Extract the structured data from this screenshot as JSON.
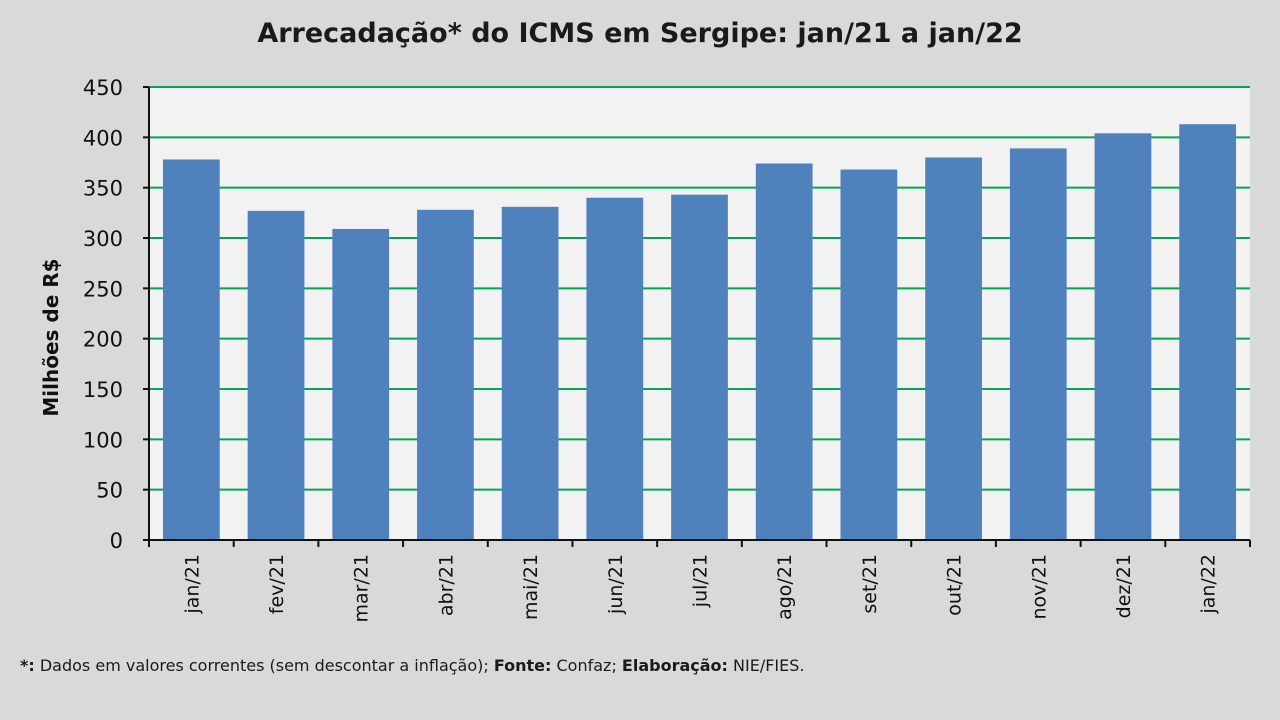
{
  "chart_data": {
    "type": "bar",
    "title": "Arrecadação* do ICMS em Sergipe: jan/21 a jan/22",
    "xlabel": "",
    "ylabel": "Milhões de R$",
    "ylim": [
      0,
      450
    ],
    "yticks": [
      0,
      50,
      100,
      150,
      200,
      250,
      300,
      350,
      400,
      450
    ],
    "grid": true,
    "categories": [
      "jan/21",
      "fev/21",
      "mar/21",
      "abr/21",
      "mai/21",
      "jun/21",
      "jul/21",
      "ago/21",
      "set/21",
      "out/21",
      "nov/21",
      "dez/21",
      "jan/22"
    ],
    "values": [
      378,
      327,
      309,
      328,
      331,
      340,
      343,
      374,
      368,
      380,
      389,
      404,
      413
    ],
    "bar_color": "#4f81bd",
    "grid_color": "#00a651",
    "plot_background": "#f2f2f2"
  },
  "footnote": {
    "marker": "*:",
    "text1": " Dados em valores correntes (sem descontar a inflação); ",
    "source_label": "Fonte:",
    "source": " Confaz; ",
    "credit_label": "Elaboração:",
    "credit": " NIE/FIES."
  }
}
